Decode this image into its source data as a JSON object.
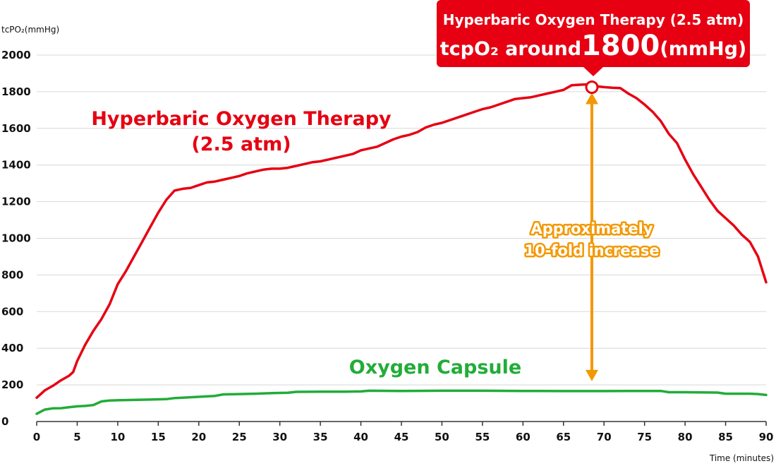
{
  "chart_data": {
    "type": "line",
    "ylabel": "tcPO₂(mmHg)",
    "xlabel": "Time (minutes)",
    "xlim": [
      0,
      90
    ],
    "ylim": [
      0,
      2000
    ],
    "xticks": [
      0,
      5,
      10,
      15,
      20,
      25,
      30,
      35,
      40,
      45,
      50,
      55,
      60,
      65,
      70,
      75,
      80,
      85,
      90
    ],
    "yticks": [
      0,
      200,
      400,
      600,
      800,
      1000,
      1200,
      1400,
      1600,
      1800,
      2000
    ],
    "grid": true,
    "series": [
      {
        "name_line1": "Hyperbaric Oxygen Therapy",
        "name_line2": "(2.5 atm)",
        "color": "#e60012",
        "points": [
          [
            0,
            130
          ],
          [
            1,
            170
          ],
          [
            2,
            195
          ],
          [
            3,
            225
          ],
          [
            4,
            250
          ],
          [
            4.5,
            270
          ],
          [
            5,
            330
          ],
          [
            6,
            420
          ],
          [
            7,
            495
          ],
          [
            8,
            560
          ],
          [
            9,
            640
          ],
          [
            10,
            750
          ],
          [
            11,
            820
          ],
          [
            12,
            900
          ],
          [
            13,
            980
          ],
          [
            14,
            1060
          ],
          [
            15,
            1140
          ],
          [
            16,
            1210
          ],
          [
            17,
            1260
          ],
          [
            18,
            1270
          ],
          [
            19,
            1275
          ],
          [
            20,
            1290
          ],
          [
            21,
            1305
          ],
          [
            22,
            1310
          ],
          [
            23,
            1320
          ],
          [
            24,
            1330
          ],
          [
            25,
            1340
          ],
          [
            26,
            1355
          ],
          [
            27,
            1365
          ],
          [
            28,
            1375
          ],
          [
            29,
            1380
          ],
          [
            30,
            1380
          ],
          [
            31,
            1385
          ],
          [
            32,
            1395
          ],
          [
            33,
            1405
          ],
          [
            34,
            1415
          ],
          [
            35,
            1420
          ],
          [
            36,
            1430
          ],
          [
            37,
            1440
          ],
          [
            38,
            1450
          ],
          [
            39,
            1460
          ],
          [
            40,
            1480
          ],
          [
            41,
            1490
          ],
          [
            42,
            1500
          ],
          [
            43,
            1520
          ],
          [
            44,
            1540
          ],
          [
            45,
            1555
          ],
          [
            46,
            1565
          ],
          [
            47,
            1580
          ],
          [
            48,
            1605
          ],
          [
            49,
            1620
          ],
          [
            50,
            1630
          ],
          [
            51,
            1645
          ],
          [
            52,
            1660
          ],
          [
            53,
            1675
          ],
          [
            54,
            1690
          ],
          [
            55,
            1705
          ],
          [
            56,
            1715
          ],
          [
            57,
            1730
          ],
          [
            58,
            1745
          ],
          [
            59,
            1760
          ],
          [
            60,
            1765
          ],
          [
            61,
            1770
          ],
          [
            62,
            1780
          ],
          [
            63,
            1790
          ],
          [
            64,
            1800
          ],
          [
            65,
            1810
          ],
          [
            66,
            1835
          ],
          [
            67,
            1838
          ],
          [
            68,
            1840
          ],
          [
            69,
            1830
          ],
          [
            70,
            1825
          ],
          [
            71,
            1822
          ],
          [
            72,
            1820
          ],
          [
            73,
            1790
          ],
          [
            74,
            1765
          ],
          [
            75,
            1730
          ],
          [
            76,
            1690
          ],
          [
            77,
            1640
          ],
          [
            78,
            1570
          ],
          [
            79,
            1520
          ],
          [
            80,
            1430
          ],
          [
            81,
            1350
          ],
          [
            82,
            1280
          ],
          [
            83,
            1210
          ],
          [
            84,
            1150
          ],
          [
            85,
            1110
          ],
          [
            86,
            1070
          ],
          [
            87,
            1020
          ],
          [
            88,
            980
          ],
          [
            89,
            900
          ],
          [
            90,
            760
          ]
        ]
      },
      {
        "name": "Oxygen Capsule",
        "color": "#22ac38",
        "points": [
          [
            0,
            42
          ],
          [
            1,
            65
          ],
          [
            2,
            72
          ],
          [
            3,
            73
          ],
          [
            4,
            78
          ],
          [
            5,
            83
          ],
          [
            6,
            85
          ],
          [
            7,
            90
          ],
          [
            8,
            110
          ],
          [
            9,
            115
          ],
          [
            10,
            116
          ],
          [
            12,
            118
          ],
          [
            14,
            120
          ],
          [
            16,
            122
          ],
          [
            17,
            128
          ],
          [
            18,
            130
          ],
          [
            20,
            135
          ],
          [
            22,
            140
          ],
          [
            23,
            148
          ],
          [
            25,
            150
          ],
          [
            27,
            152
          ],
          [
            29,
            155
          ],
          [
            31,
            157
          ],
          [
            32,
            162
          ],
          [
            35,
            163
          ],
          [
            38,
            163
          ],
          [
            40,
            164
          ],
          [
            41,
            168
          ],
          [
            45,
            167
          ],
          [
            50,
            168
          ],
          [
            55,
            168
          ],
          [
            60,
            167
          ],
          [
            65,
            166
          ],
          [
            70,
            166
          ],
          [
            75,
            167
          ],
          [
            77,
            167
          ],
          [
            78,
            160
          ],
          [
            80,
            160
          ],
          [
            84,
            158
          ],
          [
            85,
            152
          ],
          [
            88,
            152
          ],
          [
            89,
            150
          ],
          [
            90,
            145
          ]
        ]
      }
    ],
    "callout": {
      "line1": "Hyperbaric Oxygen Therapy (2.5 atm)",
      "line2_prefix": "tcpO₂ around",
      "line2_value": "1800",
      "line2_unit": "(mmHg)",
      "marker_point": [
        68.5,
        1840
      ],
      "color": "#e60012"
    },
    "annotation": {
      "line1": "Approximately",
      "line2": "10-fold increase",
      "color": "#f39800",
      "x": 68.5,
      "from": 1840,
      "to": 166
    }
  }
}
